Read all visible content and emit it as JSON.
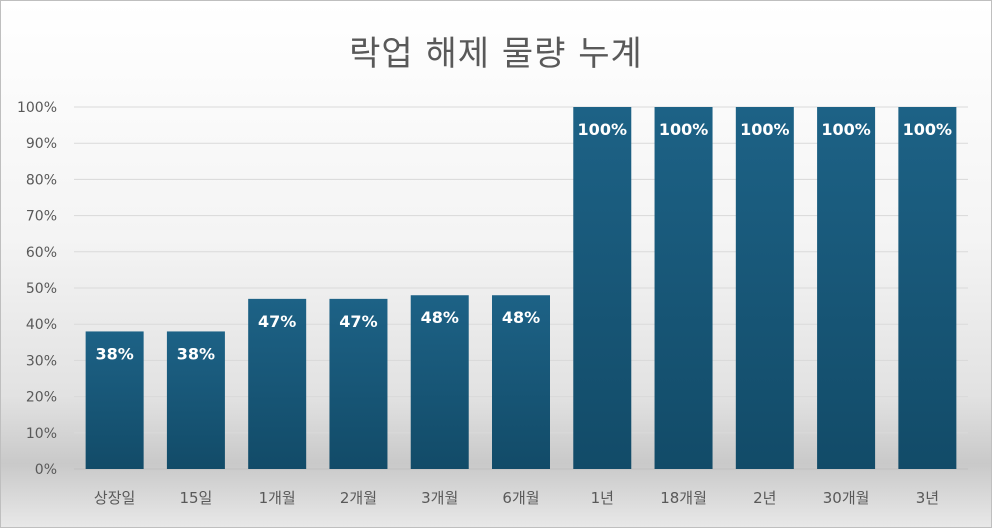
{
  "chart_data": {
    "type": "bar",
    "title": "락업 해제 물량 누계",
    "categories": [
      "상장일",
      "15일",
      "1개월",
      "2개월",
      "3개월",
      "6개월",
      "1년",
      "18개월",
      "2년",
      "30개월",
      "3년"
    ],
    "values": [
      38,
      38,
      47,
      47,
      48,
      48,
      100,
      100,
      100,
      100,
      100
    ],
    "data_labels": [
      "38%",
      "38%",
      "47%",
      "47%",
      "48%",
      "48%",
      "100%",
      "100%",
      "100%",
      "100%",
      "100%"
    ],
    "y_ticks": [
      "0%",
      "10%",
      "20%",
      "30%",
      "40%",
      "50%",
      "60%",
      "70%",
      "80%",
      "90%",
      "100%"
    ],
    "ylim": [
      0,
      100
    ],
    "grid": true,
    "legend": "none",
    "bar_color": "#1d5f80",
    "label_color": "#ffffff"
  }
}
